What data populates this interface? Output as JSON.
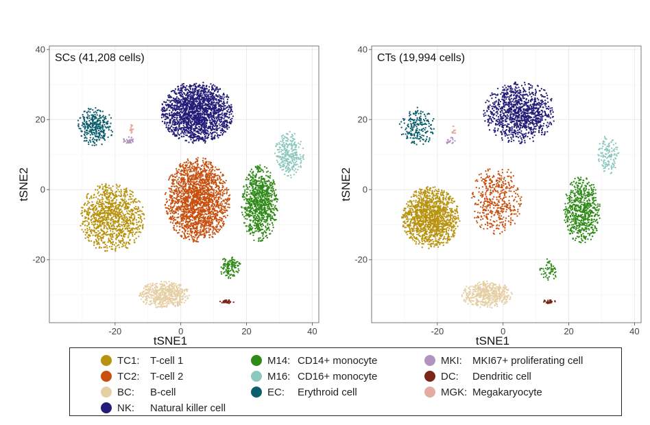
{
  "chart_data": [
    {
      "type": "scatter",
      "title": "SCs (41,208 cells)",
      "xlabel": "tSNE1",
      "ylabel": "tSNE2",
      "xlim": [
        -40,
        42
      ],
      "ylim": [
        -38,
        41
      ],
      "xticks": [
        -20,
        0,
        20,
        40
      ],
      "yticks": [
        -20,
        0,
        20,
        40
      ],
      "grid": true,
      "clusters": [
        {
          "code": "NK",
          "center": [
            5,
            22
          ],
          "spread": [
            10,
            8
          ],
          "count": 1900
        },
        {
          "code": "TC2",
          "center": [
            5,
            -3
          ],
          "spread": [
            9,
            11
          ],
          "count": 2000
        },
        {
          "code": "TC1",
          "center": [
            -21,
            -8
          ],
          "spread": [
            9,
            9
          ],
          "count": 1100
        },
        {
          "code": "M14",
          "center": [
            24,
            -4
          ],
          "spread": [
            5,
            10
          ],
          "count": 900
        },
        {
          "code": "M14",
          "center": [
            15,
            -22
          ],
          "spread": [
            3,
            3
          ],
          "count": 120
        },
        {
          "code": "M16",
          "center": [
            33,
            10
          ],
          "spread": [
            4,
            6
          ],
          "count": 300
        },
        {
          "code": "EC",
          "center": [
            -26,
            18
          ],
          "spread": [
            5,
            5
          ],
          "count": 320
        },
        {
          "code": "BC",
          "center": [
            -5,
            -30
          ],
          "spread": [
            7,
            3.5
          ],
          "count": 550
        },
        {
          "code": "MKI",
          "center": [
            -16,
            14
          ],
          "spread": [
            1.5,
            1
          ],
          "count": 30
        },
        {
          "code": "DC",
          "center": [
            14,
            -32
          ],
          "spread": [
            2,
            0.5
          ],
          "count": 40
        },
        {
          "code": "MGK",
          "center": [
            -15,
            17
          ],
          "spread": [
            0.5,
            1.5
          ],
          "count": 20
        }
      ]
    },
    {
      "type": "scatter",
      "title": "CTs (19,994 cells)",
      "xlabel": "tSNE1",
      "ylabel": "tSNE2",
      "xlim": [
        -40,
        42
      ],
      "ylim": [
        -38,
        41
      ],
      "xticks": [
        -20,
        0,
        20,
        40
      ],
      "yticks": [
        -20,
        0,
        20,
        40
      ],
      "grid": true,
      "clusters": [
        {
          "code": "NK",
          "center": [
            5,
            22
          ],
          "spread": [
            10,
            8
          ],
          "count": 1100
        },
        {
          "code": "TC2",
          "center": [
            -2,
            -3
          ],
          "spread": [
            7,
            9
          ],
          "count": 450
        },
        {
          "code": "TC1",
          "center": [
            -22,
            -8
          ],
          "spread": [
            8,
            8
          ],
          "count": 1400
        },
        {
          "code": "M14",
          "center": [
            24,
            -6
          ],
          "spread": [
            5,
            9
          ],
          "count": 650
        },
        {
          "code": "M14",
          "center": [
            14,
            -23
          ],
          "spread": [
            2.5,
            3
          ],
          "count": 60
        },
        {
          "code": "M16",
          "center": [
            32,
            10
          ],
          "spread": [
            3,
            5
          ],
          "count": 140
        },
        {
          "code": "EC",
          "center": [
            -26,
            18
          ],
          "spread": [
            5,
            5
          ],
          "count": 200
        },
        {
          "code": "BC",
          "center": [
            -5,
            -30
          ],
          "spread": [
            7,
            3.5
          ],
          "count": 500
        },
        {
          "code": "MKI",
          "center": [
            -16,
            14
          ],
          "spread": [
            1.5,
            1
          ],
          "count": 20
        },
        {
          "code": "DC",
          "center": [
            14,
            -32
          ],
          "spread": [
            2,
            0.5
          ],
          "count": 30
        },
        {
          "code": "MGK",
          "center": [
            -15,
            17
          ],
          "spread": [
            0.5,
            1.5
          ],
          "count": 12
        }
      ]
    }
  ],
  "legend": {
    "items": [
      {
        "code": "TC1:",
        "label": "T-cell 1",
        "color": "#B8930F"
      },
      {
        "code": "TC2:",
        "label": "T-cell 2",
        "color": "#C8500F"
      },
      {
        "code": "BC:",
        "label": "B-cell",
        "color": "#E6CFA5"
      },
      {
        "code": "NK:",
        "label": "Natural killer cell",
        "color": "#231C79"
      },
      {
        "code": "M14:",
        "label": "CD14+ monocyte",
        "color": "#2F8A17"
      },
      {
        "code": "M16:",
        "label": "CD16+ monocyte",
        "color": "#8CC8BF"
      },
      {
        "code": "EC:",
        "label": "Erythroid cell",
        "color": "#0B5E6C"
      },
      {
        "code": "MKI:",
        "label": "MKI67+ proliferating cell",
        "color": "#B293BE"
      },
      {
        "code": "DC:",
        "label": "Dendritic cell",
        "color": "#7A2718"
      },
      {
        "code": "MGK:",
        "label": "Megakaryocyte",
        "color": "#E3ABA2"
      }
    ]
  },
  "colors": {
    "TC1": "#B8930F",
    "TC2": "#C8500F",
    "BC": "#E6CFA5",
    "NK": "#231C79",
    "M14": "#2F8A17",
    "M16": "#8CC8BF",
    "EC": "#0B5E6C",
    "MKI": "#B293BE",
    "DC": "#7A2718",
    "MGK": "#E3ABA2"
  }
}
